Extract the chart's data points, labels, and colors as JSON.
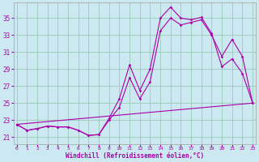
{
  "xlabel": "Windchill (Refroidissement éolien,°C)",
  "background_color": "#cce8f0",
  "grid_color": "#99ccbb",
  "line_color": "#aa00aa",
  "x_ticks": [
    0,
    1,
    2,
    3,
    4,
    5,
    6,
    7,
    8,
    9,
    10,
    11,
    12,
    13,
    14,
    15,
    16,
    17,
    18,
    19,
    20,
    21,
    22,
    23
  ],
  "y_ticks": [
    21,
    23,
    25,
    27,
    29,
    31,
    33,
    35
  ],
  "xlim": [
    -0.3,
    23.3
  ],
  "ylim": [
    20.2,
    36.8
  ],
  "series1_x": [
    0,
    1,
    2,
    3,
    4,
    5,
    6,
    7,
    8,
    9,
    10,
    11,
    12,
    13,
    14,
    15,
    16,
    17,
    18,
    19,
    20,
    21,
    22,
    23
  ],
  "series1_y": [
    22.5,
    21.8,
    22.0,
    22.3,
    22.2,
    22.2,
    21.8,
    21.2,
    21.3,
    23.2,
    25.5,
    29.5,
    26.5,
    29.0,
    35.0,
    36.3,
    35.0,
    34.8,
    35.1,
    33.2,
    29.3,
    30.2,
    28.5,
    25.0
  ],
  "series2_x": [
    0,
    1,
    2,
    3,
    4,
    5,
    6,
    7,
    8,
    9,
    10,
    11,
    12,
    13,
    14,
    15,
    16,
    17,
    18,
    19,
    20,
    21,
    22,
    23
  ],
  "series2_y": [
    22.5,
    21.8,
    22.0,
    22.3,
    22.2,
    22.2,
    21.8,
    21.2,
    21.3,
    23.0,
    24.5,
    28.0,
    25.5,
    27.5,
    33.5,
    35.0,
    34.2,
    34.5,
    34.8,
    33.0,
    30.5,
    32.5,
    30.5,
    25.0
  ],
  "series3_x": [
    0,
    23
  ],
  "series3_y": [
    22.5,
    25.0
  ]
}
